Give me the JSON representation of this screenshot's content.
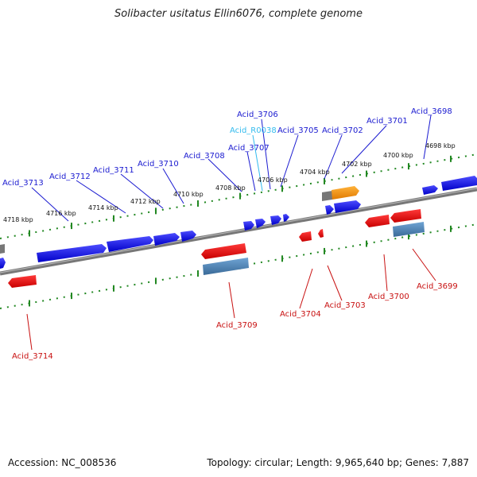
{
  "title": "Solibacter usitatus Ellin6076, complete genome",
  "footer": {
    "accession": "Accession: NC_008536",
    "summary": "Topology: circular; Length: 9,965,640 bp; Genes: 7,887"
  },
  "colors": {
    "forward_label": "#1a1ad0",
    "reverse_label": "#c81010",
    "rna_label": "#33bbee",
    "forward_gene": "#0000ee",
    "reverse_gene": "#ee0000",
    "scale_ticks": "#228822",
    "rrna": "#ff9900",
    "pseudo_gene": "#4f86b8"
  },
  "scale_labels": [
    "4718 kbp",
    "4716 kbp",
    "4714 kbp",
    "4712 kbp",
    "4710 kbp",
    "4708 kbp",
    "4706 kbp",
    "4704 kbp",
    "4702 kbp",
    "4700 kbp",
    "4698 kbp"
  ],
  "forward_labels": [
    "Acid_3713",
    "Acid_3712",
    "Acid_3711",
    "Acid_3710",
    "Acid_3708",
    "Acid_3707",
    "Acid_3706",
    "Acid_R0038",
    "Acid_3705",
    "Acid_3702",
    "Acid_3701",
    "Acid_3698"
  ],
  "reverse_labels": [
    "Acid_3714",
    "Acid_3709",
    "Acid_3704",
    "Acid_3703",
    "Acid_3700",
    "Acid_3699"
  ]
}
